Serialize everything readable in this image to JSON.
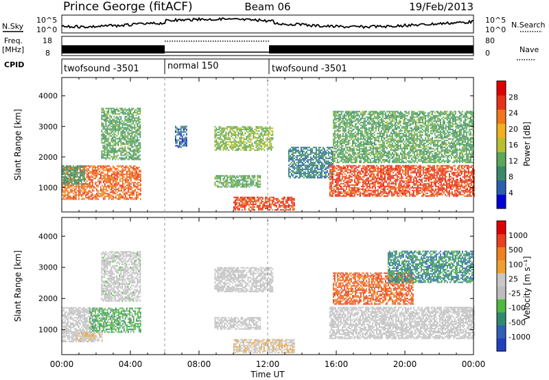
{
  "header": {
    "station": "Prince George (fitACF)",
    "beam": "Beam 06",
    "date": "19/Feb/2013"
  },
  "noise_panel": {
    "left_label": "N.Sky",
    "right_label": "N.Search",
    "left_ticks": [
      "10^5",
      "10^0"
    ],
    "right_ticks": [
      "10^5",
      "10^0"
    ]
  },
  "freq_panel": {
    "left_label_line1": "Freq.",
    "left_label_line2": "[MHz]",
    "right_label": "Nave",
    "left_ticks": [
      "18",
      "8"
    ],
    "right_ticks": [
      "80",
      "0"
    ]
  },
  "cpid_panel": {
    "label": "CPID",
    "segments": [
      {
        "name": "twofsound -3501",
        "start_hour": 0,
        "end_hour": 6
      },
      {
        "name": "normal 150",
        "start_hour": 6,
        "end_hour": 12
      },
      {
        "name": "twofsound -3501",
        "start_hour": 12,
        "end_hour": 24
      }
    ]
  },
  "colors": {
    "power_scale": [
      "#0000dd",
      "#2a5fb0",
      "#3a8a6a",
      "#5aa85a",
      "#b8c030",
      "#f0b020",
      "#f07818",
      "#e83018",
      "#e00000"
    ],
    "velocity_scale": [
      "#2040c0",
      "#3060b8",
      "#2f8a70",
      "#50b840",
      "#bdbdbd",
      "#c8c8c8",
      "#f0a030",
      "#f08020",
      "#e84020",
      "#e00000"
    ]
  },
  "chart_data": [
    {
      "type": "heatmap",
      "name": "Power",
      "ylabel": "Slant Range [km]",
      "ylim": [
        200,
        4600
      ],
      "yticks": [
        "1000",
        "2000",
        "3000",
        "4000"
      ],
      "xlim": [
        0,
        24
      ],
      "colorbar_label": "Power [dB]",
      "colorbar_ticks": [
        "28",
        "24",
        "20",
        "16",
        "12",
        "8",
        "4"
      ],
      "colorbar_range": [
        0,
        32
      ],
      "bands": [
        {
          "t0": 0.0,
          "t1": 4.6,
          "r0": 600,
          "r1": 1700,
          "v": 24
        },
        {
          "t0": 0.0,
          "t1": 1.3,
          "r0": 1100,
          "r1": 1700,
          "v": 10
        },
        {
          "t0": 2.3,
          "t1": 4.6,
          "r0": 1900,
          "r1": 3600,
          "v": 12
        },
        {
          "t0": 6.6,
          "t1": 7.3,
          "r0": 2300,
          "r1": 3000,
          "v": 6
        },
        {
          "t0": 8.9,
          "t1": 12.3,
          "r0": 2200,
          "r1": 3000,
          "v": 14
        },
        {
          "t0": 8.9,
          "t1": 11.6,
          "r0": 1000,
          "r1": 1400,
          "v": 12
        },
        {
          "t0": 10.0,
          "t1": 13.6,
          "r0": 250,
          "r1": 700,
          "v": 26
        },
        {
          "t0": 13.2,
          "t1": 15.8,
          "r0": 1300,
          "r1": 2300,
          "v": 8
        },
        {
          "t0": 15.6,
          "t1": 24.0,
          "r0": 700,
          "r1": 1700,
          "v": 26
        },
        {
          "t0": 15.8,
          "t1": 24.0,
          "r0": 1800,
          "r1": 3500,
          "v": 12
        }
      ],
      "time_ticks": [
        "00:00",
        "04:00",
        "08:00",
        "12:00",
        "16:00",
        "20:00",
        "00:00"
      ]
    },
    {
      "type": "heatmap",
      "name": "Velocity",
      "ylabel": "Slant Range [km]",
      "ylim": [
        200,
        4600
      ],
      "yticks": [
        "1000",
        "2000",
        "3000",
        "4000"
      ],
      "xlim": [
        0,
        24
      ],
      "colorbar_label": "Velocity [m s⁻¹]",
      "colorbar_ticks": [
        "1000",
        "500",
        "100",
        "25",
        "-25",
        "-100",
        "-500",
        "-1000"
      ],
      "colorbar_range": [
        -1000,
        1000
      ],
      "bands": [
        {
          "t0": 0.0,
          "t1": 2.0,
          "r0": 600,
          "r1": 1700,
          "v": 0
        },
        {
          "t0": 1.6,
          "t1": 4.6,
          "r0": 900,
          "r1": 1700,
          "v": -300
        },
        {
          "t0": 0.8,
          "t1": 2.4,
          "r0": 600,
          "r1": 900,
          "v": 150
        },
        {
          "t0": 2.3,
          "t1": 4.6,
          "r0": 1900,
          "r1": 3500,
          "v": -40
        },
        {
          "t0": 8.9,
          "t1": 12.3,
          "r0": 2200,
          "r1": 3000,
          "v": 0
        },
        {
          "t0": 8.9,
          "t1": 11.6,
          "r0": 1000,
          "r1": 1400,
          "v": 0
        },
        {
          "t0": 10.0,
          "t1": 13.6,
          "r0": 250,
          "r1": 700,
          "v": 150
        },
        {
          "t0": 15.6,
          "t1": 24.0,
          "r0": 700,
          "r1": 1700,
          "v": 0
        },
        {
          "t0": 15.8,
          "t1": 20.5,
          "r0": 1800,
          "r1": 2800,
          "v": 600
        },
        {
          "t0": 19.0,
          "t1": 24.0,
          "r0": 2500,
          "r1": 3500,
          "v": -500
        }
      ],
      "time_ticks": [
        "00:00",
        "04:00",
        "08:00",
        "12:00",
        "16:00",
        "20:00",
        "00:00"
      ]
    }
  ],
  "xlabel": "Time UT"
}
